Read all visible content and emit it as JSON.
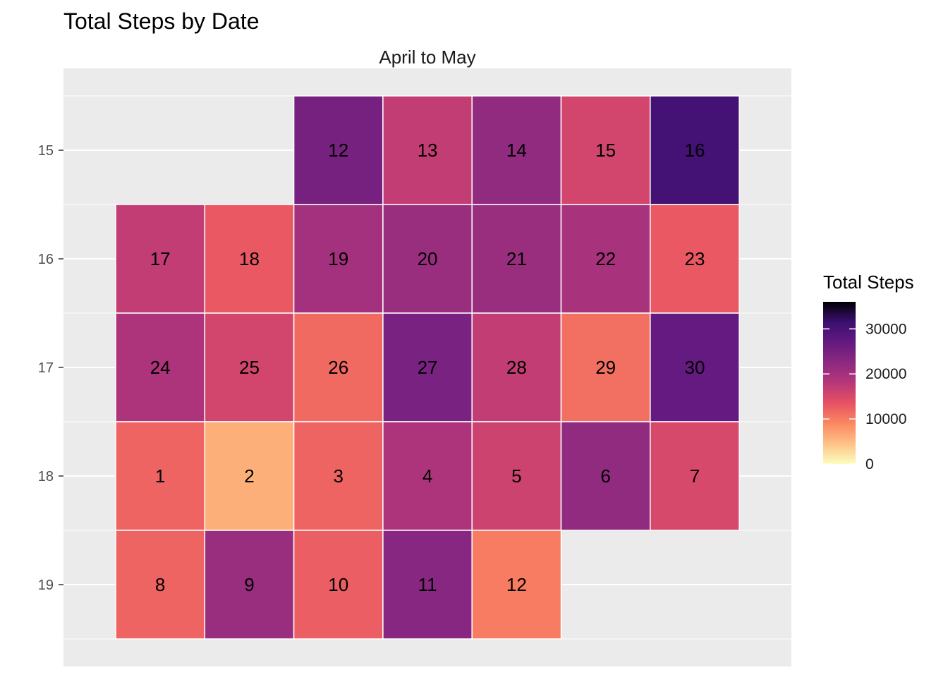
{
  "chart_data": {
    "type": "heatmap",
    "title": "Total Steps by Date",
    "facet_label": "April to May",
    "y_axis": {
      "label": "",
      "ticks": [
        "15",
        "16",
        "17",
        "18",
        "19"
      ]
    },
    "x_axis": {
      "label": "",
      "ticks": []
    },
    "legend": {
      "title": "Total Steps",
      "ticks": [
        "0",
        "10000",
        "20000",
        "30000"
      ],
      "range": [
        0,
        36000
      ],
      "palette": "magma (reversed)",
      "placement": "right"
    },
    "cells": [
      {
        "week": 15,
        "weekday": 3,
        "day": "12",
        "value": 25000
      },
      {
        "week": 15,
        "weekday": 4,
        "day": "13",
        "value": 17000
      },
      {
        "week": 15,
        "weekday": 5,
        "day": "14",
        "value": 22000
      },
      {
        "week": 15,
        "weekday": 6,
        "day": "15",
        "value": 15500
      },
      {
        "week": 15,
        "weekday": 7,
        "day": "16",
        "value": 30500
      },
      {
        "week": 16,
        "weekday": 1,
        "day": "17",
        "value": 17000
      },
      {
        "week": 16,
        "weekday": 2,
        "day": "18",
        "value": 13000
      },
      {
        "week": 16,
        "weekday": 3,
        "day": "19",
        "value": 20000
      },
      {
        "week": 16,
        "weekday": 4,
        "day": "20",
        "value": 21000
      },
      {
        "week": 16,
        "weekday": 5,
        "day": "21",
        "value": 21000
      },
      {
        "week": 16,
        "weekday": 6,
        "day": "22",
        "value": 19500
      },
      {
        "week": 16,
        "weekday": 7,
        "day": "23",
        "value": 13000
      },
      {
        "week": 17,
        "weekday": 1,
        "day": "24",
        "value": 19000
      },
      {
        "week": 17,
        "weekday": 2,
        "day": "25",
        "value": 15500
      },
      {
        "week": 17,
        "weekday": 3,
        "day": "26",
        "value": 11500
      },
      {
        "week": 17,
        "weekday": 4,
        "day": "27",
        "value": 24500
      },
      {
        "week": 17,
        "weekday": 5,
        "day": "28",
        "value": 17000
      },
      {
        "week": 17,
        "weekday": 6,
        "day": "29",
        "value": 11000
      },
      {
        "week": 17,
        "weekday": 7,
        "day": "30",
        "value": 27000
      },
      {
        "week": 18,
        "weekday": 1,
        "day": "1",
        "value": 12000
      },
      {
        "week": 18,
        "weekday": 2,
        "day": "2",
        "value": 6000
      },
      {
        "week": 18,
        "weekday": 3,
        "day": "3",
        "value": 12000
      },
      {
        "week": 18,
        "weekday": 4,
        "day": "4",
        "value": 19000
      },
      {
        "week": 18,
        "weekday": 5,
        "day": "5",
        "value": 16000
      },
      {
        "week": 18,
        "weekday": 6,
        "day": "6",
        "value": 22000
      },
      {
        "week": 18,
        "weekday": 7,
        "day": "7",
        "value": 15000
      },
      {
        "week": 19,
        "weekday": 1,
        "day": "8",
        "value": 12000
      },
      {
        "week": 19,
        "weekday": 2,
        "day": "9",
        "value": 21000
      },
      {
        "week": 19,
        "weekday": 3,
        "day": "10",
        "value": 12500
      },
      {
        "week": 19,
        "weekday": 4,
        "day": "11",
        "value": 23000
      },
      {
        "week": 19,
        "weekday": 5,
        "day": "12",
        "value": 10000
      }
    ]
  }
}
